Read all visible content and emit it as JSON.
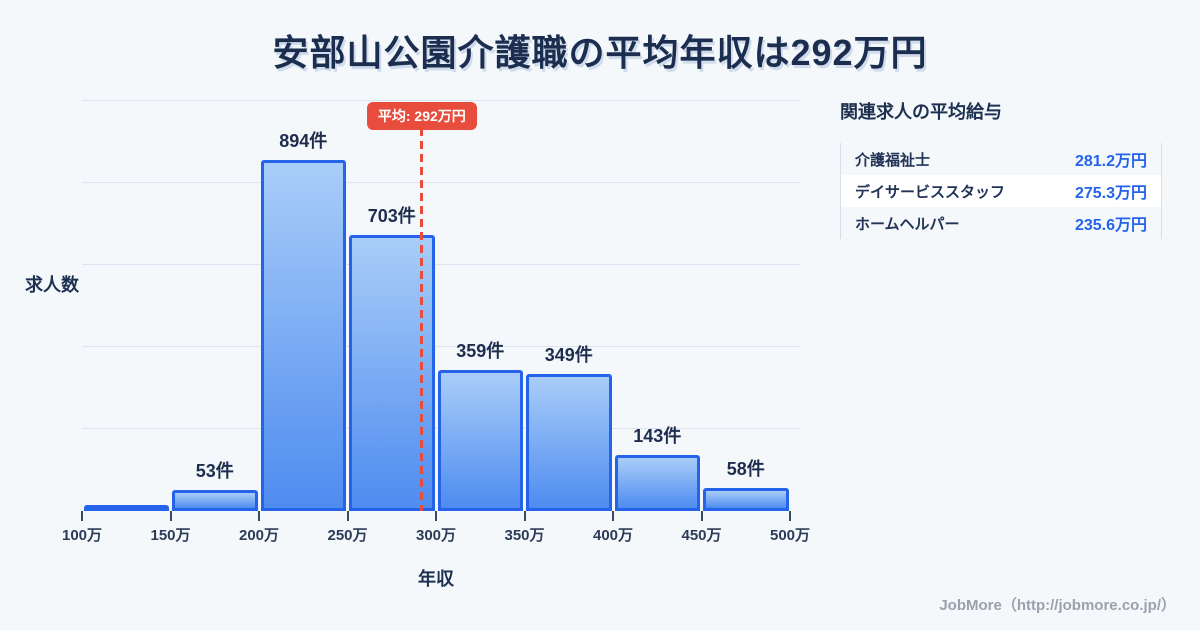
{
  "title": "安部山公園介護職の平均年収は292万円",
  "chart_data": {
    "type": "bar",
    "title": "安部山公園介護職の平均年収は292万円",
    "xlabel": "年収",
    "ylabel": "求人数",
    "x_ticks": [
      "100万",
      "150万",
      "200万",
      "250万",
      "300万",
      "350万",
      "400万",
      "450万",
      "500万"
    ],
    "x_range_man_yen": [
      100,
      500
    ],
    "grid": true,
    "gridline_count": 5,
    "bins": [
      {
        "range": [
          100,
          150
        ],
        "count": null,
        "label": ""
      },
      {
        "range": [
          150,
          200
        ],
        "count": 53,
        "label": "53件"
      },
      {
        "range": [
          200,
          250
        ],
        "count": 894,
        "label": "894件"
      },
      {
        "range": [
          250,
          300
        ],
        "count": 703,
        "label": "703件"
      },
      {
        "range": [
          300,
          350
        ],
        "count": 359,
        "label": "359件"
      },
      {
        "range": [
          350,
          400
        ],
        "count": 349,
        "label": "349件"
      },
      {
        "range": [
          400,
          450
        ],
        "count": 143,
        "label": "143件"
      },
      {
        "range": [
          450,
          500
        ],
        "count": 58,
        "label": "58件"
      }
    ],
    "average": {
      "value": 292,
      "label": "平均: 292万円"
    }
  },
  "related_panel": {
    "title": "関連求人の平均給与",
    "rows": [
      {
        "label": "介護福祉士",
        "value": "281.2万円"
      },
      {
        "label": "デイサービススタッフ",
        "value": "275.3万円"
      },
      {
        "label": "ホームヘルパー",
        "value": "235.6万円"
      }
    ]
  },
  "footer": {
    "credit": "JobMore（http://jobmore.co.jp/）"
  },
  "colors": {
    "background": "#f5f8fb",
    "bar_border": "#2563eb",
    "bar_gradient_top": "#a9cdf8",
    "bar_gradient_bottom": "#4e8cf0",
    "accent_red": "#e74c3c",
    "text_dark": "#1d3050",
    "value_blue": "#2563eb",
    "gridline": "#dde3f0",
    "footer_gray": "#9aa1ad"
  }
}
